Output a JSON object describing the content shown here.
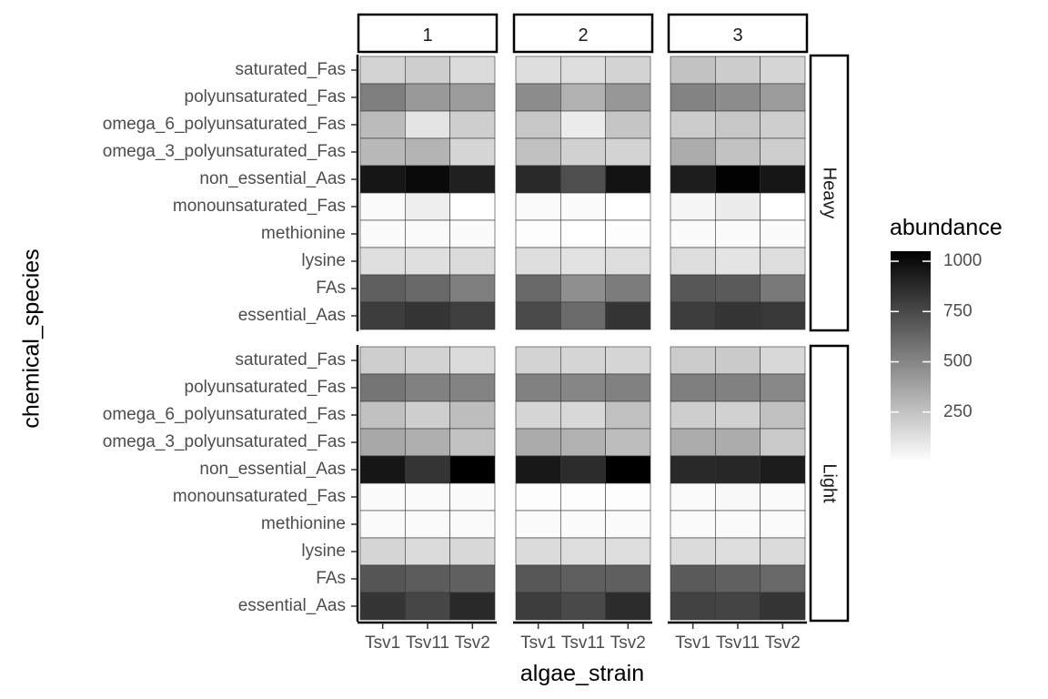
{
  "chart_data": {
    "type": "heatmap",
    "xlabel": "algae_strain",
    "ylabel": "chemical_species",
    "x_categories": [
      "Tsv1",
      "Tsv11",
      "Tsv2"
    ],
    "x_tick_labels": [
      "Tsv1",
      "Tsv11",
      "Tsv2"
    ],
    "y_categories": [
      "saturated_Fas",
      "polyunsaturated_Fas",
      "omega_6_polyunsaturated_Fas",
      "omega_3_polyunsaturated_Fas",
      "non_essential_Aas",
      "monounsaturated_Fas",
      "methionine",
      "lysine",
      "FAs",
      "essential_Aas"
    ],
    "facet_cols": [
      "1",
      "2",
      "3"
    ],
    "facet_rows": [
      "Heavy",
      "Light"
    ],
    "legend": {
      "title": "abundance",
      "min": 0,
      "max": 1050,
      "ticks": [
        250,
        500,
        750,
        1000
      ],
      "low_color": "#ffffff",
      "high_color": "#000000",
      "position": "right"
    },
    "values": {
      "Heavy": {
        "1": [
          [
            180,
            200,
            150
          ],
          [
            530,
            420,
            410
          ],
          [
            280,
            110,
            200
          ],
          [
            290,
            310,
            170
          ],
          [
            960,
            1010,
            920
          ],
          [
            15,
            70,
            5
          ],
          [
            15,
            20,
            15
          ],
          [
            130,
            130,
            150
          ],
          [
            660,
            620,
            530
          ],
          [
            800,
            830,
            790
          ]
        ],
        "2": [
          [
            140,
            140,
            180
          ],
          [
            470,
            320,
            430
          ],
          [
            230,
            80,
            240
          ],
          [
            260,
            190,
            180
          ],
          [
            880,
            730,
            970
          ],
          [
            15,
            15,
            5
          ],
          [
            10,
            5,
            10
          ],
          [
            140,
            120,
            140
          ],
          [
            620,
            460,
            540
          ],
          [
            740,
            610,
            830
          ]
        ],
        "3": [
          [
            250,
            210,
            170
          ],
          [
            510,
            470,
            410
          ],
          [
            210,
            230,
            200
          ],
          [
            340,
            250,
            200
          ],
          [
            930,
            1040,
            960
          ],
          [
            40,
            80,
            5
          ],
          [
            15,
            15,
            15
          ],
          [
            140,
            110,
            140
          ],
          [
            690,
            680,
            550
          ],
          [
            800,
            830,
            820
          ]
        ]
      },
      "Light": {
        "1": [
          [
            200,
            180,
            150
          ],
          [
            570,
            520,
            510
          ],
          [
            260,
            200,
            270
          ],
          [
            360,
            330,
            250
          ],
          [
            960,
            830,
            1050
          ],
          [
            15,
            20,
            15
          ],
          [
            20,
            20,
            20
          ],
          [
            170,
            150,
            160
          ],
          [
            700,
            670,
            650
          ],
          [
            830,
            760,
            880
          ]
        ],
        "2": [
          [
            180,
            170,
            170
          ],
          [
            520,
            500,
            520
          ],
          [
            170,
            160,
            260
          ],
          [
            350,
            320,
            270
          ],
          [
            950,
            870,
            1050
          ],
          [
            10,
            10,
            10
          ],
          [
            15,
            15,
            15
          ],
          [
            150,
            140,
            140
          ],
          [
            690,
            660,
            660
          ],
          [
            800,
            750,
            870
          ]
        ],
        "3": [
          [
            210,
            220,
            160
          ],
          [
            530,
            520,
            490
          ],
          [
            200,
            190,
            260
          ],
          [
            340,
            340,
            220
          ],
          [
            880,
            890,
            940
          ],
          [
            20,
            30,
            20
          ],
          [
            20,
            20,
            20
          ],
          [
            150,
            140,
            150
          ],
          [
            680,
            650,
            620
          ],
          [
            780,
            770,
            830
          ]
        ]
      }
    }
  }
}
